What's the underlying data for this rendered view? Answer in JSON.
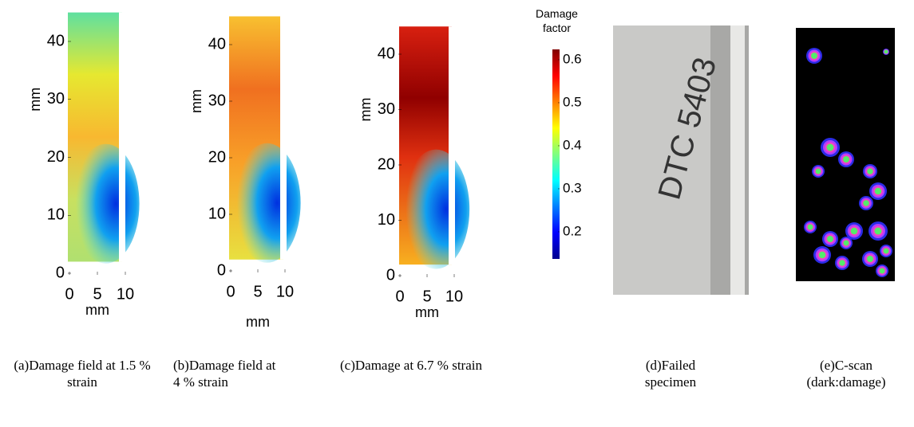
{
  "panels": [
    {
      "xlabel": "mm",
      "ylabel": "mm",
      "xlim": [
        0,
        10
      ],
      "ylim": [
        0,
        45
      ],
      "xticks": [
        0,
        5,
        10
      ],
      "yticks": [
        0,
        10,
        20,
        30,
        40
      ],
      "caption": "(a)Damage field at 1.5 % strain"
    },
    {
      "xlabel": "mm",
      "ylabel": "mm",
      "xlim": [
        0,
        10
      ],
      "ylim": [
        0,
        45
      ],
      "xticks": [
        0,
        5,
        10
      ],
      "yticks": [
        0,
        10,
        20,
        30,
        40
      ],
      "caption": "(b)Damage field at  4 % strain"
    },
    {
      "xlabel": "mm",
      "ylabel": "mm",
      "xlim": [
        0,
        10
      ],
      "ylim": [
        0,
        45
      ],
      "xticks": [
        0,
        5,
        10
      ],
      "yticks": [
        0,
        10,
        20,
        30,
        40
      ],
      "caption": "(c)Damage at 6.7 % strain"
    }
  ],
  "colorbar": {
    "title": "Damage factor",
    "lim": [
      0.137,
      0.624
    ],
    "ticks": [
      0.2,
      0.3,
      0.4,
      0.5,
      0.6
    ]
  },
  "photos": [
    {
      "caption": "(d)Failed specimen"
    },
    {
      "caption": "(e)C-scan (dark:damage)"
    }
  ]
}
